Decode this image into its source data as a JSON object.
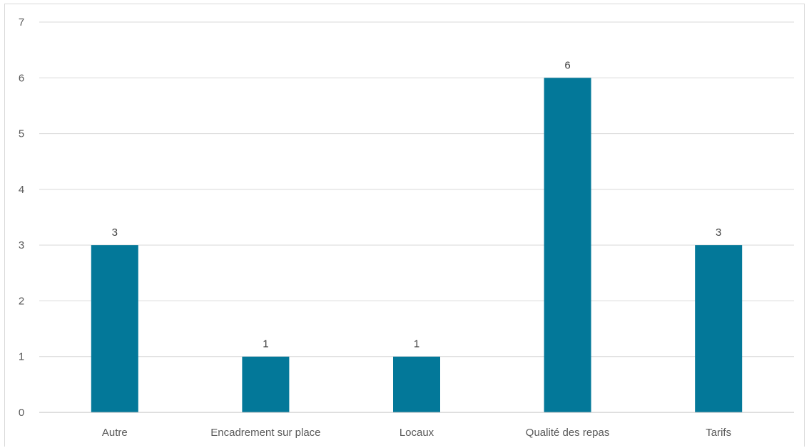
{
  "chart_data": {
    "type": "bar",
    "categories": [
      "Autre",
      "Encadrement sur place",
      "Locaux",
      "Qualité des repas",
      "Tarifs"
    ],
    "values": [
      3,
      1,
      1,
      6,
      3
    ],
    "title": "",
    "xlabel": "",
    "ylabel": "",
    "ylim": [
      0,
      7
    ],
    "yticks": [
      0,
      1,
      2,
      3,
      4,
      5,
      6,
      7
    ],
    "grid": true,
    "legend": "none",
    "data_labels": [
      "3",
      "1",
      "1",
      "6",
      "3"
    ],
    "colors": {
      "bar": "#037899",
      "grid": "#d9d9d9",
      "text": "#595959"
    }
  }
}
